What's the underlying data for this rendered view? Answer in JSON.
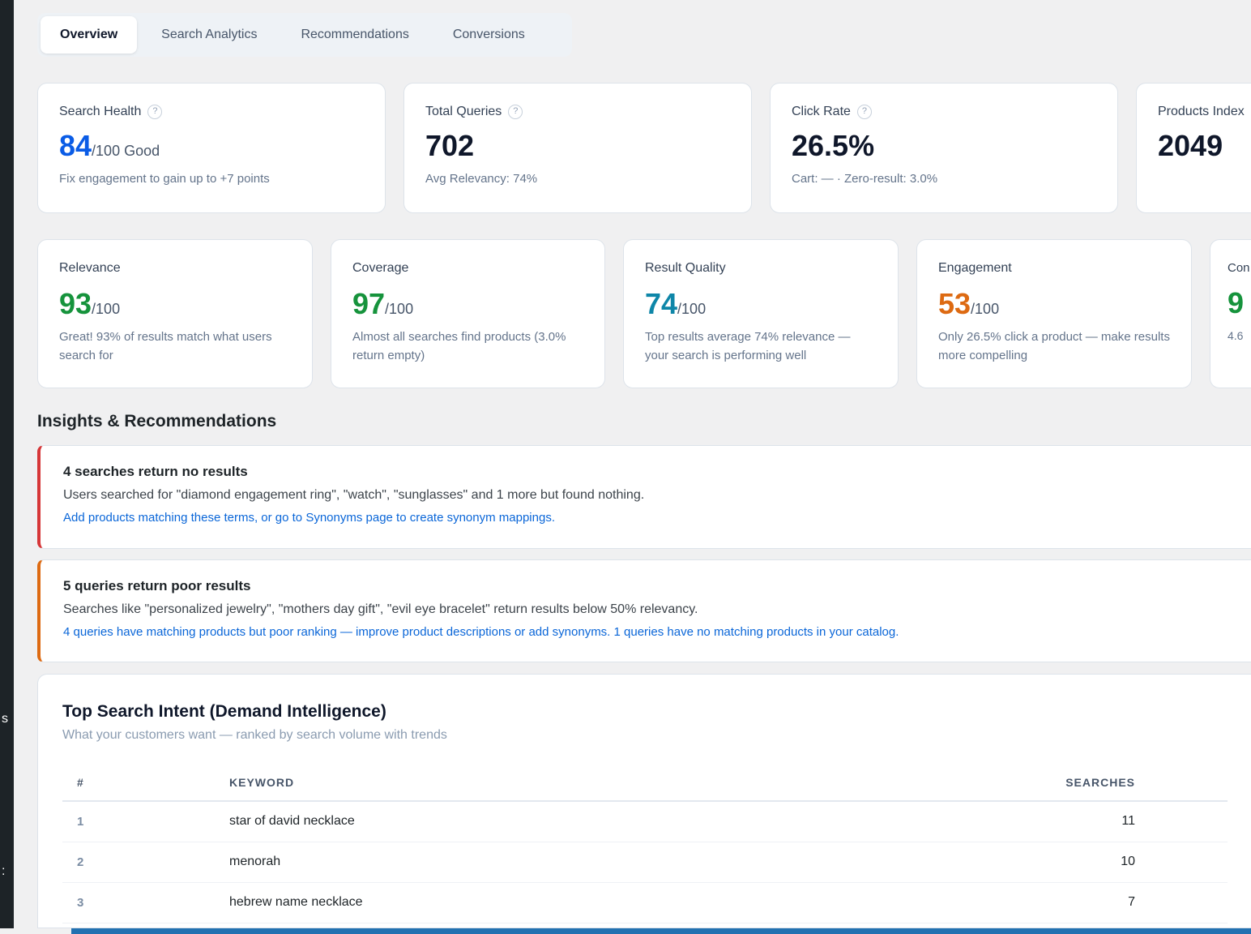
{
  "sidebar": {
    "fragment1": "s",
    "fragment2": ":"
  },
  "tabs": [
    "Overview",
    "Search Analytics",
    "Recommendations",
    "Conversions"
  ],
  "stats": [
    {
      "label": "Search Health",
      "value": "84",
      "suffix": "/100 Good",
      "sub": "Fix engagement to gain up to +7 points",
      "color": "#0a5ce6"
    },
    {
      "label": "Total Queries",
      "value": "702",
      "sub": "Avg Relevancy: 74%"
    },
    {
      "label": "Click Rate",
      "value": "26.5%",
      "sub": "Cart: — · Zero-result: 3.0%"
    },
    {
      "label": "Products Index",
      "value": "2049"
    }
  ],
  "scores": [
    {
      "label": "Relevance",
      "value": "93",
      "suffix": "/100",
      "sub": "Great! 93% of results match what users search for",
      "color": "#16933c"
    },
    {
      "label": "Coverage",
      "value": "97",
      "suffix": "/100",
      "sub": "Almost all searches find products (3.0% return empty)",
      "color": "#16933c"
    },
    {
      "label": "Result Quality",
      "value": "74",
      "suffix": "/100",
      "sub": "Top results average 74% relevance — your search is performing well",
      "color": "#0e86a8"
    },
    {
      "label": "Engagement",
      "value": "53",
      "suffix": "/100",
      "sub": "Only 26.5% click a product — make results more compelling",
      "color": "#dd6a12"
    },
    {
      "label": "Con",
      "value": "9",
      "sub": "4.6",
      "color": "#16933c"
    }
  ],
  "insights_title": "Insights & Recommendations",
  "alerts": [
    {
      "title": "4 searches return no results",
      "desc": "Users searched for \"diamond engagement ring\", \"watch\", \"sunglasses\" and 1 more but found nothing.",
      "action": "Add products matching these terms, or go to Synonyms page to create synonym mappings.",
      "color": "#d63638"
    },
    {
      "title": "5 queries return poor results",
      "desc": "Searches like \"personalized jewelry\", \"mothers day gift\", \"evil eye bracelet\" return results below 50% relevancy.",
      "action": "4 queries have matching products but poor ranking — improve product descriptions or add synonyms. 1 queries have no matching products in your catalog.",
      "color": "#dd6a12"
    }
  ],
  "intent": {
    "title": "Top Search Intent (Demand Intelligence)",
    "subtitle": "What your customers want — ranked by search volume with trends",
    "headers": [
      "#",
      "KEYWORD",
      "SEARCHES"
    ],
    "rows": [
      [
        "1",
        "star of david necklace",
        "11"
      ],
      [
        "2",
        "menorah",
        "10"
      ],
      [
        "3",
        "hebrew name necklace",
        "7"
      ]
    ]
  }
}
